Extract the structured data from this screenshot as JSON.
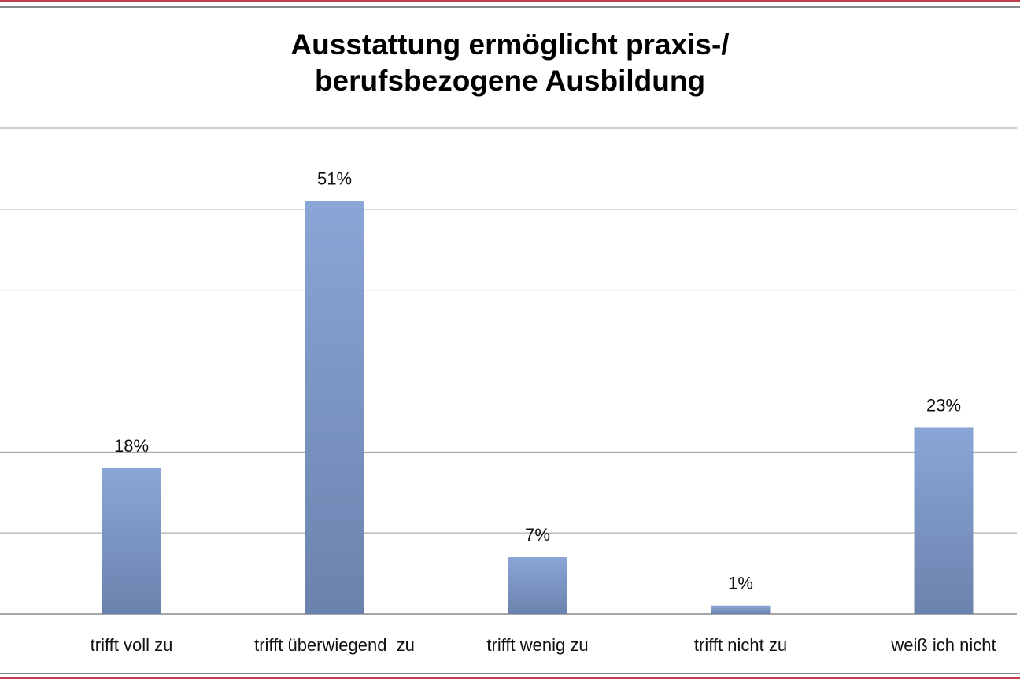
{
  "chart_data": {
    "type": "bar",
    "title_line1": "Ausstattung ermöglicht praxis-/",
    "title_line2": "berufsbezogene Ausbildung",
    "categories": [
      "trifft voll zu",
      "trifft überwiegend  zu",
      "trifft wenig zu",
      "trifft nicht zu",
      "weiß ich nicht"
    ],
    "values": [
      18,
      51,
      7,
      1,
      23
    ],
    "data_labels": [
      "18%",
      "51%",
      "7%",
      "1%",
      "23%"
    ],
    "ylim": [
      0,
      60
    ],
    "gridline_step": 10,
    "grid": true,
    "xlabel": "",
    "ylabel": "",
    "bar_color_top": "#8aa6d6",
    "bar_color_bottom": "#6b82ad"
  }
}
